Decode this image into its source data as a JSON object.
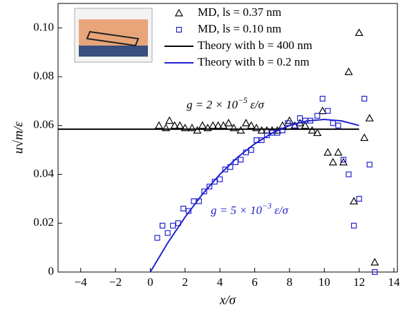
{
  "chart_data": {
    "type": "scatter",
    "xlabel": "x/σ",
    "ylabel": "u√m/ε",
    "xlim": [
      -5.3,
      14.2
    ],
    "ylim": [
      0,
      0.11
    ],
    "xticks": [
      {
        "value": -4,
        "label": "−4"
      },
      {
        "value": -2,
        "label": "−2"
      },
      0,
      2,
      4,
      6,
      8,
      10,
      12,
      14
    ],
    "yticks": [
      0,
      0.02,
      0.04,
      0.06,
      0.08,
      {
        "value": 0.1,
        "label": "0.10"
      }
    ],
    "annotations": [
      {
        "base": "g = 2 × 10",
        "exp": "−5",
        "unit": "ε/σ",
        "color": "#000000"
      },
      {
        "base": "g = 5 × 10",
        "exp": "−3",
        "unit": "ε/σ",
        "color": "#1f1fd0"
      }
    ],
    "series": [
      {
        "name": "MD, ls = 0.37 nm",
        "kind": "triangle",
        "color": "#000000",
        "x": [
          0.5,
          0.9,
          1.1,
          1.4,
          1.7,
          2.0,
          2.4,
          2.7,
          3.0,
          3.3,
          3.6,
          3.9,
          4.2,
          4.5,
          4.8,
          5.2,
          5.5,
          5.8,
          6.1,
          6.4,
          6.7,
          7.0,
          7.3,
          7.6,
          8.0,
          8.3,
          8.6,
          8.9,
          9.3,
          9.6,
          9.9,
          10.2,
          10.5,
          10.8,
          11.1,
          11.4,
          11.7,
          12.0,
          12.3,
          12.6,
          12.9
        ],
        "values": [
          0.06,
          0.059,
          0.062,
          0.06,
          0.06,
          0.059,
          0.059,
          0.058,
          0.06,
          0.059,
          0.06,
          0.06,
          0.06,
          0.061,
          0.059,
          0.058,
          0.061,
          0.06,
          0.059,
          0.058,
          0.058,
          0.058,
          0.058,
          0.06,
          0.062,
          0.06,
          0.061,
          0.06,
          0.058,
          0.057,
          0.066,
          0.049,
          0.045,
          0.049,
          0.045,
          0.082,
          0.029,
          0.098,
          0.055,
          0.063,
          0.004
        ]
      },
      {
        "name": "MD, ls = 0.10 nm",
        "kind": "square",
        "color": "#1f1fd0",
        "x": [
          0.4,
          0.7,
          1.0,
          1.3,
          1.6,
          1.9,
          2.2,
          2.5,
          2.8,
          3.1,
          3.4,
          3.7,
          4.0,
          4.3,
          4.6,
          4.9,
          5.2,
          5.5,
          5.8,
          6.1,
          6.4,
          6.7,
          7.0,
          7.3,
          7.6,
          7.9,
          8.3,
          8.6,
          8.9,
          9.2,
          9.6,
          9.9,
          10.2,
          10.5,
          10.8,
          11.1,
          11.4,
          11.7,
          12.0,
          12.3,
          12.6,
          12.9
        ],
        "values": [
          0.014,
          0.019,
          0.016,
          0.019,
          0.02,
          0.026,
          0.025,
          0.029,
          0.029,
          0.033,
          0.035,
          0.037,
          0.038,
          0.042,
          0.043,
          0.045,
          0.046,
          0.049,
          0.05,
          0.054,
          0.054,
          0.056,
          0.057,
          0.057,
          0.058,
          0.061,
          0.06,
          0.063,
          0.062,
          0.062,
          0.064,
          0.071,
          0.066,
          0.061,
          0.06,
          0.046,
          0.04,
          0.019,
          0.03,
          0.071,
          0.044,
          0.0
        ]
      },
      {
        "name": "Theory with b = 400 nm",
        "kind": "line",
        "color": "#000000",
        "x": [
          -5.3,
          12
        ],
        "values": [
          0.0585,
          0.0585
        ]
      },
      {
        "name": "Theory with b = 0.2 nm",
        "kind": "line",
        "color": "#1f1fd0",
        "x": [
          0,
          1,
          2,
          3,
          4,
          5,
          6,
          7,
          8,
          9,
          10,
          11,
          12
        ],
        "values": [
          0,
          0.0119,
          0.0225,
          0.0319,
          0.04,
          0.0469,
          0.0525,
          0.0569,
          0.06,
          0.0619,
          0.0625,
          0.0619,
          0.06
        ]
      }
    ]
  }
}
